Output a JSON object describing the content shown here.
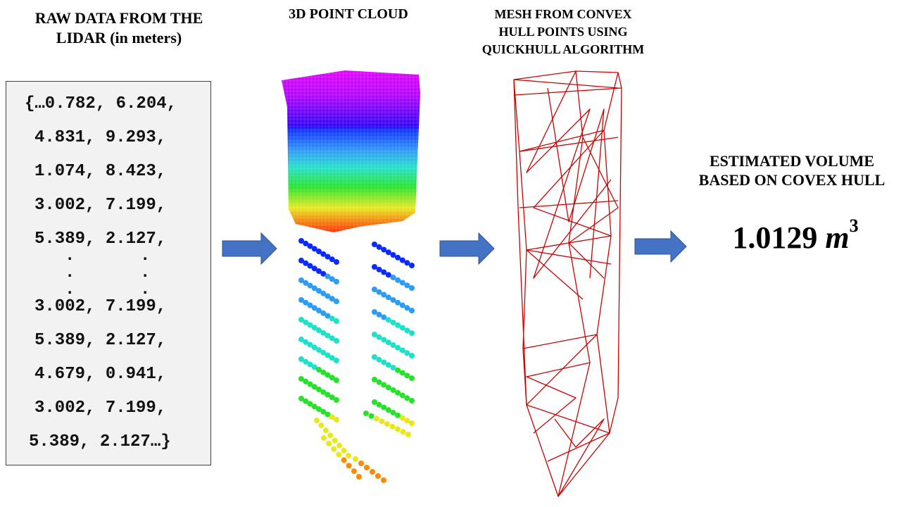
{
  "titles": {
    "raw_line1": "RAW DATA FROM THE",
    "raw_line2": "LIDAR (in meters)",
    "cloud": "3D POINT CLOUD",
    "mesh_line1": "MESH FROM CONVEX",
    "mesh_line2": "HULL POINTS USING",
    "mesh_line3": "QUICKHULL ALGORITHM",
    "volume_line1": "ESTIMATED VOLUME",
    "volume_line2": "BASED ON COVEX HULL"
  },
  "raw_data": {
    "lines_top": [
      "{…0.782, 6.204,",
      "4.831, 9.293,",
      "1.074, 8.423,",
      "3.002, 7.199,",
      "5.389, 2.127,"
    ],
    "ellipsis": ".",
    "lines_bottom": [
      "3.002, 7.199,",
      "5.389, 2.127,",
      "4.679, 0.941,",
      "3.002, 7.199,",
      "5.389, 2.127…}"
    ]
  },
  "volume": {
    "value": "1.0129",
    "unit": "m",
    "exponent": "3"
  },
  "colors": {
    "arrow_fill": "#4472c4",
    "arrow_stroke": "#2f528f",
    "mesh": "#cc0000",
    "box_bg": "#f2f2f2"
  }
}
